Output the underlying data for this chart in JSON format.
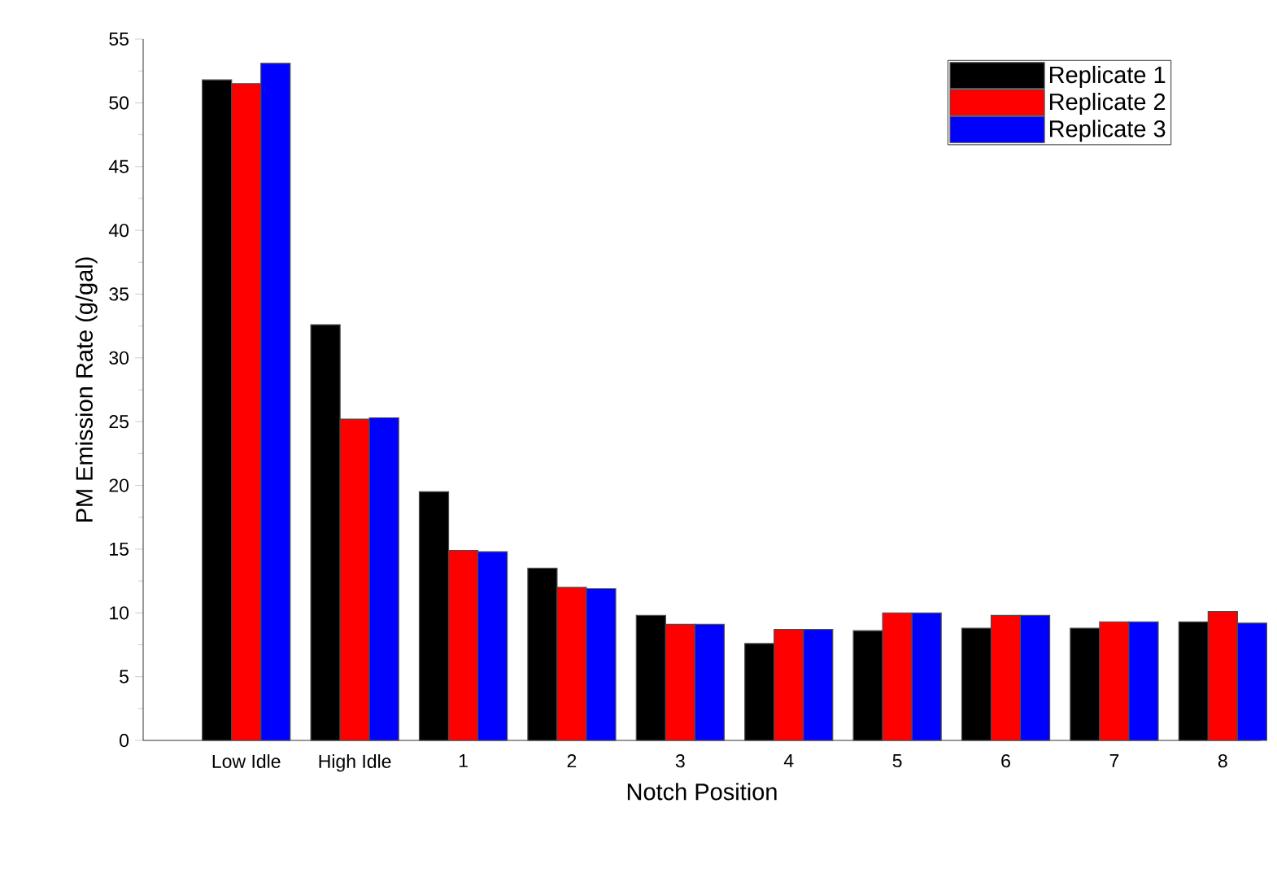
{
  "chart_data": {
    "type": "bar",
    "xlabel": "Notch Position",
    "ylabel": "PM Emission Rate (g/gal)",
    "categories": [
      "Low Idle",
      "High Idle",
      "1",
      "2",
      "3",
      "4",
      "5",
      "6",
      "7",
      "8"
    ],
    "series": [
      {
        "name": "Replicate 1",
        "color": "#000000",
        "values": [
          51.8,
          32.6,
          19.5,
          13.5,
          9.8,
          7.6,
          8.6,
          8.8,
          8.8,
          9.3
        ]
      },
      {
        "name": "Replicate 2",
        "color": "#ff0000",
        "values": [
          51.5,
          25.2,
          14.9,
          12.0,
          9.1,
          8.7,
          10.0,
          9.8,
          9.3,
          10.1
        ]
      },
      {
        "name": "Replicate 3",
        "color": "#0000ff",
        "values": [
          53.1,
          25.3,
          14.8,
          11.9,
          9.1,
          8.7,
          10.0,
          9.8,
          9.3,
          9.2
        ]
      }
    ],
    "ylim": [
      0,
      55
    ],
    "yticks": [
      0,
      5,
      10,
      15,
      20,
      25,
      30,
      35,
      40,
      45,
      50,
      55
    ],
    "legend": "top right"
  }
}
